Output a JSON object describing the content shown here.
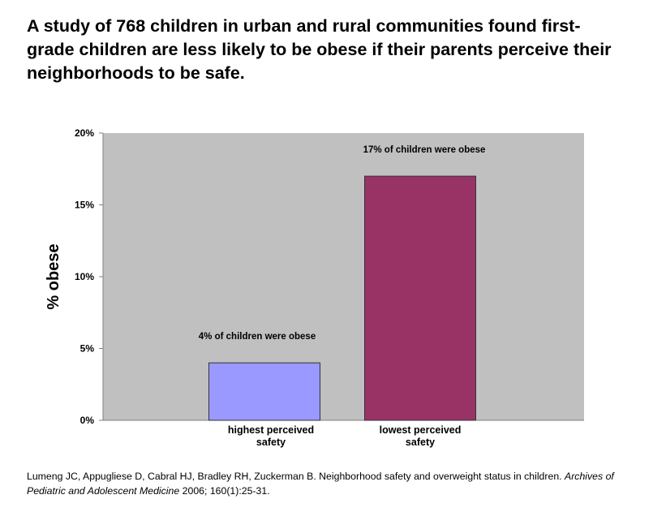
{
  "title": "A study of 768 children in urban and rural communities found first-grade children are less likely to be obese if their parents perceive their neighborhoods to be safe.",
  "chart_data": {
    "type": "bar",
    "categories": [
      [
        "highest perceived",
        "safety"
      ],
      [
        "lowest perceived",
        "safety"
      ]
    ],
    "values": [
      4,
      17
    ],
    "colors": [
      "#9999ff",
      "#993366"
    ],
    "plot_background": "#c0c0c0",
    "annotations": [
      "4% of children were obese",
      "17% of children were obese"
    ],
    "ylabel": "% obese",
    "ylim": [
      0,
      20
    ],
    "yticks": [
      0,
      5,
      10,
      15,
      20
    ],
    "ytick_labels": [
      "0%",
      "5%",
      "10%",
      "15%",
      "20%"
    ],
    "grid": false
  },
  "citation": {
    "authors": "Lumeng JC, Appugliese D, Cabral HJ, Bradley RH, Zuckerman B. Neighborhood safety and overweight status in children. ",
    "journal": "Archives of Pediatric and Adolescent Medicine",
    "details": " 2006; 160(1):25-31."
  }
}
